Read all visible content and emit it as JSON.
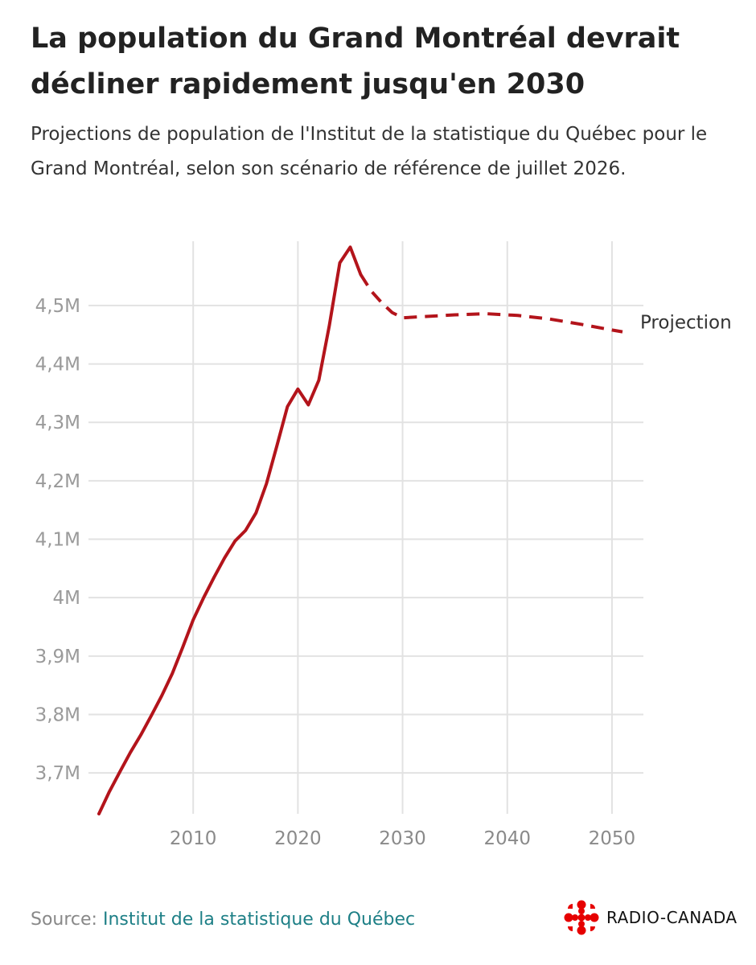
{
  "chart_data": {
    "type": "line",
    "title": "La population du Grand Montréal devrait décliner rapidement jusqu'en 2030",
    "subtitle": "Projections de population de l'Institut de la statistique du Québec pour le Grand Montréal, selon son scénario de référence de juillet 2026.",
    "x_ticks": [
      {
        "value": 2010,
        "label": "2010"
      },
      {
        "value": 2020,
        "label": "2020"
      },
      {
        "value": 2030,
        "label": "2030"
      },
      {
        "value": 2040,
        "label": "2040"
      },
      {
        "value": 2050,
        "label": "2050"
      }
    ],
    "y_ticks": [
      {
        "value": 3700000,
        "label": "3,7M"
      },
      {
        "value": 3800000,
        "label": "3,8M"
      },
      {
        "value": 3900000,
        "label": "3,9M"
      },
      {
        "value": 4000000,
        "label": "4M"
      },
      {
        "value": 4100000,
        "label": "4,1M"
      },
      {
        "value": 4200000,
        "label": "4,2M"
      },
      {
        "value": 4300000,
        "label": "4,3M"
      },
      {
        "value": 4400000,
        "label": "4,4M"
      },
      {
        "value": 4500000,
        "label": "4,5M"
      }
    ],
    "xlim": [
      2000,
      2053
    ],
    "ylim": [
      3630000,
      4610000
    ],
    "grid": true,
    "series": [
      {
        "style": "solid",
        "color": "#b3141b",
        "x": [
          2001,
          2002,
          2003,
          2004,
          2005,
          2006,
          2007,
          2008,
          2009,
          2010,
          2011,
          2012,
          2013,
          2014,
          2015,
          2016,
          2017,
          2018,
          2019,
          2020,
          2021,
          2022,
          2023,
          2024,
          2025,
          2026
        ],
        "y": [
          3630000,
          3668000,
          3702000,
          3735000,
          3765000,
          3798000,
          3832000,
          3870000,
          3915000,
          3962000,
          4000000,
          4035000,
          4068000,
          4097000,
          4115000,
          4145000,
          4195000,
          4260000,
          4327000,
          4357000,
          4330000,
          4372000,
          4465000,
          4573000,
          4600000,
          4553000
        ]
      },
      {
        "name": "Projection",
        "style": "dashed",
        "color": "#b3141b",
        "x": [
          2026,
          2027,
          2028,
          2029,
          2030,
          2032,
          2035,
          2038,
          2041,
          2044,
          2047,
          2050,
          2051
        ],
        "y": [
          4553000,
          4525000,
          4505000,
          4488000,
          4479000,
          4481000,
          4484000,
          4486000,
          4483000,
          4477000,
          4468000,
          4458000,
          4455000
        ]
      }
    ],
    "source_prefix": "Source: ",
    "source_name": "Institut de la statistique du Québec",
    "logo_text": "RADIO-CANADA",
    "colors": {
      "line": "#b3141b",
      "grid": "#e2e2e2",
      "link": "#1d7f86",
      "logo": "#e60000"
    }
  }
}
